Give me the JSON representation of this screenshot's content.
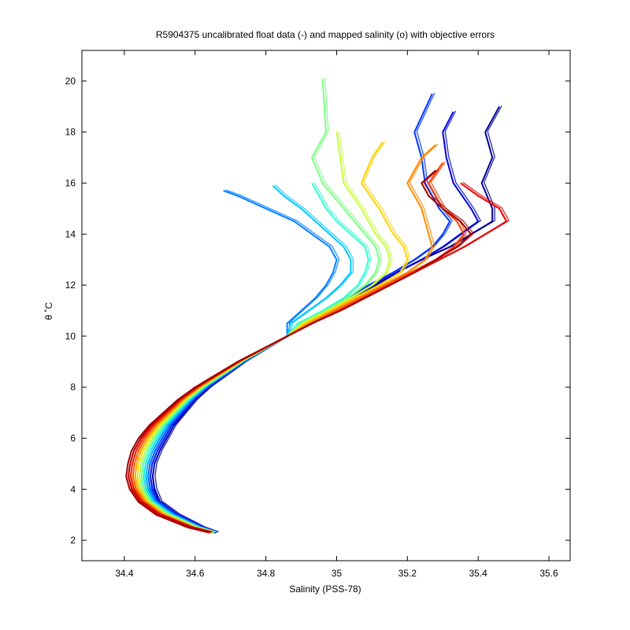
{
  "chart_data": {
    "type": "line",
    "title": "R5904375 uncalibrated float data (-) and mapped salinity (o) with objective errors",
    "xlabel": "Salinity (PSS-78)",
    "ylabel": "θ ˚C",
    "xlim": [
      34.28,
      35.66
    ],
    "ylim": [
      1.2,
      21.2
    ],
    "xticks": [
      "34.4",
      "34.6",
      "34.8",
      "35",
      "35.2",
      "35.4",
      "35.6"
    ],
    "xtick_values": [
      34.4,
      34.6,
      34.8,
      35.0,
      35.2,
      35.4,
      35.6
    ],
    "yticks": [
      "2",
      "4",
      "6",
      "8",
      "10",
      "12",
      "14",
      "16",
      "18",
      "20"
    ],
    "ytick_values": [
      2,
      4,
      6,
      8,
      10,
      12,
      14,
      16,
      18,
      20
    ],
    "grid": false,
    "legend": "none",
    "colormap": "jet",
    "deep_tail": {
      "theta": [
        2.3,
        2.5,
        3.0,
        3.5,
        4.0,
        4.5,
        5.0,
        5.5,
        6.0,
        6.5,
        7.0,
        7.5,
        8.0,
        8.5,
        9.0,
        9.5,
        10.0,
        10.5
      ],
      "salinity_first_profile": [
        34.66,
        34.62,
        34.55,
        34.5,
        34.485,
        34.48,
        34.485,
        34.5,
        34.52,
        34.54,
        34.57,
        34.6,
        34.64,
        34.69,
        34.74,
        34.8,
        34.86,
        34.92
      ],
      "salinity_last_profile": [
        34.64,
        34.58,
        34.49,
        34.44,
        34.415,
        34.405,
        34.41,
        34.42,
        34.44,
        34.47,
        34.51,
        34.55,
        34.6,
        34.66,
        34.72,
        34.79,
        34.86,
        34.93
      ]
    },
    "series": [
      {
        "profile": 1,
        "color": "#00008f",
        "thermocline": [
          [
            10.5,
            34.92
          ],
          [
            11.0,
            34.99
          ],
          [
            11.5,
            35.05
          ],
          [
            12.0,
            35.11
          ],
          [
            12.5,
            35.17
          ],
          [
            13.0,
            35.24
          ],
          [
            13.5,
            35.32
          ],
          [
            14.0,
            35.38
          ],
          [
            14.5,
            35.44
          ]
        ],
        "surface": [
          [
            15.0,
            35.44
          ],
          [
            16.0,
            35.41
          ],
          [
            17.0,
            35.44
          ],
          [
            18.0,
            35.42
          ],
          [
            19.0,
            35.46
          ]
        ]
      },
      {
        "profile": 18,
        "color": "#0000dc",
        "thermocline": [
          [
            10.5,
            34.91
          ],
          [
            11.0,
            34.98
          ],
          [
            11.5,
            35.04
          ],
          [
            12.0,
            35.1
          ],
          [
            12.5,
            35.17
          ],
          [
            13.0,
            35.24
          ],
          [
            13.5,
            35.3
          ],
          [
            14.0,
            35.35
          ],
          [
            14.5,
            35.4
          ]
        ],
        "surface": [
          [
            15.0,
            35.38
          ],
          [
            16.0,
            35.33
          ],
          [
            17.0,
            35.31
          ],
          [
            18.0,
            35.3
          ],
          [
            18.8,
            35.33
          ]
        ]
      },
      {
        "profile": 36,
        "color": "#0038ff",
        "thermocline": [
          [
            10.5,
            34.9
          ],
          [
            11.0,
            34.97
          ],
          [
            11.5,
            35.03
          ],
          [
            12.0,
            35.09
          ],
          [
            12.5,
            35.16
          ],
          [
            13.0,
            35.22
          ],
          [
            13.5,
            35.27
          ],
          [
            14.0,
            35.3
          ],
          [
            14.5,
            35.32
          ]
        ],
        "surface": [
          [
            15.0,
            35.29
          ],
          [
            16.0,
            35.25
          ],
          [
            17.0,
            35.24
          ],
          [
            18.0,
            35.22
          ],
          [
            19.5,
            35.27
          ]
        ]
      },
      {
        "profile": 54,
        "color": "#0080ff",
        "thermocline": [
          [
            10.5,
            34.86
          ],
          [
            11.0,
            34.9
          ],
          [
            11.5,
            34.94
          ],
          [
            12.0,
            34.97
          ],
          [
            12.5,
            34.99
          ],
          [
            13.0,
            35.0
          ],
          [
            13.5,
            34.98
          ]
        ],
        "surface": [
          [
            14.0,
            34.93
          ],
          [
            14.5,
            34.88
          ],
          [
            15.0,
            34.8
          ],
          [
            15.5,
            34.72
          ],
          [
            15.7,
            34.68
          ]
        ]
      },
      {
        "profile": 72,
        "color": "#00c8ff",
        "thermocline": [
          [
            10.5,
            34.87
          ],
          [
            11.0,
            34.92
          ],
          [
            11.5,
            34.97
          ],
          [
            12.0,
            35.01
          ],
          [
            12.5,
            35.04
          ],
          [
            13.0,
            35.04
          ],
          [
            13.5,
            35.02
          ]
        ],
        "surface": [
          [
            14.0,
            34.98
          ],
          [
            14.5,
            34.94
          ],
          [
            15.0,
            34.9
          ],
          [
            15.5,
            34.85
          ],
          [
            15.9,
            34.82
          ]
        ]
      },
      {
        "profile": 90,
        "color": "#30ffcf",
        "thermocline": [
          [
            10.5,
            34.89
          ],
          [
            11.0,
            34.96
          ],
          [
            11.5,
            35.02
          ],
          [
            12.0,
            35.06
          ],
          [
            12.5,
            35.08
          ],
          [
            13.0,
            35.09
          ],
          [
            13.5,
            35.08
          ]
        ],
        "surface": [
          [
            14.0,
            35.04
          ],
          [
            14.5,
            35.0
          ],
          [
            15.0,
            34.97
          ],
          [
            15.5,
            34.95
          ],
          [
            16.0,
            34.93
          ]
        ]
      },
      {
        "profile": 108,
        "color": "#7cff83",
        "thermocline": [
          [
            10.5,
            34.9
          ],
          [
            11.0,
            34.97
          ],
          [
            11.5,
            35.03
          ],
          [
            12.0,
            35.08
          ],
          [
            12.5,
            35.11
          ],
          [
            13.0,
            35.12
          ],
          [
            13.5,
            35.11
          ]
        ],
        "surface": [
          [
            14.0,
            35.08
          ],
          [
            15.0,
            35.02
          ],
          [
            16.0,
            34.96
          ],
          [
            17.0,
            34.93
          ],
          [
            18.0,
            34.97
          ],
          [
            20.1,
            34.96
          ]
        ]
      },
      {
        "profile": 126,
        "color": "#c8ff37",
        "thermocline": [
          [
            10.5,
            34.9
          ],
          [
            11.0,
            34.97
          ],
          [
            11.5,
            35.04
          ],
          [
            12.0,
            35.1
          ],
          [
            12.5,
            35.14
          ],
          [
            13.0,
            35.15
          ],
          [
            13.5,
            35.14
          ]
        ],
        "surface": [
          [
            14.0,
            35.11
          ],
          [
            15.0,
            35.07
          ],
          [
            16.0,
            35.02
          ],
          [
            17.0,
            35.01
          ],
          [
            18.0,
            35.0
          ]
        ]
      },
      {
        "profile": 144,
        "color": "#ffd200",
        "thermocline": [
          [
            10.5,
            34.91
          ],
          [
            11.0,
            34.98
          ],
          [
            11.5,
            35.05
          ],
          [
            12.0,
            35.12
          ],
          [
            12.5,
            35.18
          ],
          [
            13.0,
            35.2
          ],
          [
            13.5,
            35.19
          ]
        ],
        "surface": [
          [
            14.0,
            35.16
          ],
          [
            15.0,
            35.12
          ],
          [
            16.0,
            35.07
          ],
          [
            17.0,
            35.1
          ],
          [
            17.6,
            35.13
          ]
        ]
      },
      {
        "profile": 162,
        "color": "#ff8a00",
        "thermocline": [
          [
            10.5,
            34.92
          ],
          [
            11.0,
            34.99
          ],
          [
            11.5,
            35.06
          ],
          [
            12.0,
            35.13
          ],
          [
            12.5,
            35.2
          ],
          [
            13.0,
            35.25
          ],
          [
            13.5,
            35.27
          ]
        ],
        "surface": [
          [
            14.0,
            35.26
          ],
          [
            15.0,
            35.24
          ],
          [
            16.0,
            35.2
          ],
          [
            17.0,
            35.24
          ],
          [
            17.5,
            35.28
          ]
        ]
      },
      {
        "profile": 180,
        "color": "#ff4000",
        "thermocline": [
          [
            10.5,
            34.93
          ],
          [
            11.0,
            35.0
          ],
          [
            11.5,
            35.07
          ],
          [
            12.0,
            35.14
          ],
          [
            12.5,
            35.21
          ],
          [
            13.0,
            35.28
          ],
          [
            13.5,
            35.33
          ],
          [
            14.0,
            35.36
          ]
        ],
        "surface": [
          [
            14.5,
            35.34
          ],
          [
            15.0,
            35.3
          ],
          [
            16.0,
            35.26
          ],
          [
            16.8,
            35.3
          ]
        ]
      },
      {
        "profile": 198,
        "color": "#e60000",
        "thermocline": [
          [
            10.5,
            34.93
          ],
          [
            11.0,
            35.01
          ],
          [
            11.5,
            35.08
          ],
          [
            12.0,
            35.15
          ],
          [
            12.5,
            35.22
          ],
          [
            13.0,
            35.29
          ],
          [
            13.5,
            35.36
          ],
          [
            14.0,
            35.42
          ],
          [
            14.5,
            35.48
          ]
        ],
        "surface": [
          [
            15.0,
            35.46
          ],
          [
            15.5,
            35.4
          ],
          [
            16.0,
            35.35
          ]
        ]
      },
      {
        "profile": 216,
        "color": "#a00000",
        "thermocline": [
          [
            10.5,
            34.93
          ],
          [
            11.0,
            35.01
          ],
          [
            11.5,
            35.08
          ],
          [
            12.0,
            35.15
          ],
          [
            12.5,
            35.22
          ],
          [
            13.0,
            35.28
          ],
          [
            13.5,
            35.34
          ],
          [
            14.0,
            35.38
          ]
        ],
        "surface": [
          [
            14.5,
            35.35
          ],
          [
            15.0,
            35.3
          ],
          [
            15.5,
            35.26
          ],
          [
            16.0,
            35.24
          ],
          [
            16.5,
            35.28
          ]
        ]
      }
    ]
  }
}
